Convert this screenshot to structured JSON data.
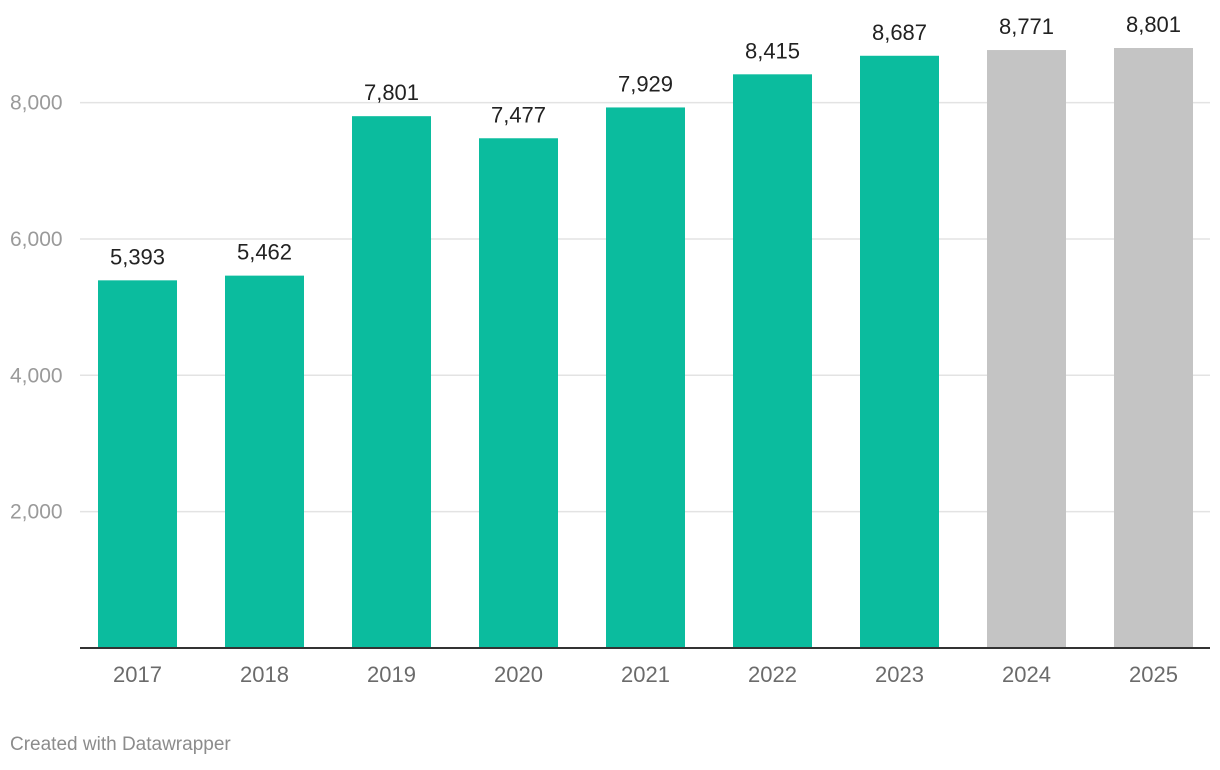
{
  "chart_data": {
    "type": "bar",
    "categories": [
      "2017",
      "2018",
      "2019",
      "2020",
      "2021",
      "2022",
      "2023",
      "2024",
      "2025"
    ],
    "values": [
      5393,
      5462,
      7801,
      7477,
      7929,
      8415,
      8687,
      8771,
      8801
    ],
    "value_labels": [
      "5,393",
      "5,462",
      "7,801",
      "7,477",
      "7,929",
      "8,415",
      "8,687",
      "8,771",
      "8,801"
    ],
    "bar_colors": [
      "#0bbc9e",
      "#0bbc9e",
      "#0bbc9e",
      "#0bbc9e",
      "#0bbc9e",
      "#0bbc9e",
      "#0bbc9e",
      "#c4c4c4",
      "#c4c4c4"
    ],
    "y_ticks": [
      2000,
      4000,
      6000,
      8000
    ],
    "y_tick_labels": [
      "2,000",
      "4,000",
      "6,000",
      "8,000"
    ],
    "ylim": [
      0,
      8801
    ],
    "grid": true,
    "title": "",
    "xlabel": "",
    "ylabel": ""
  },
  "credit": "Created with Datawrapper"
}
